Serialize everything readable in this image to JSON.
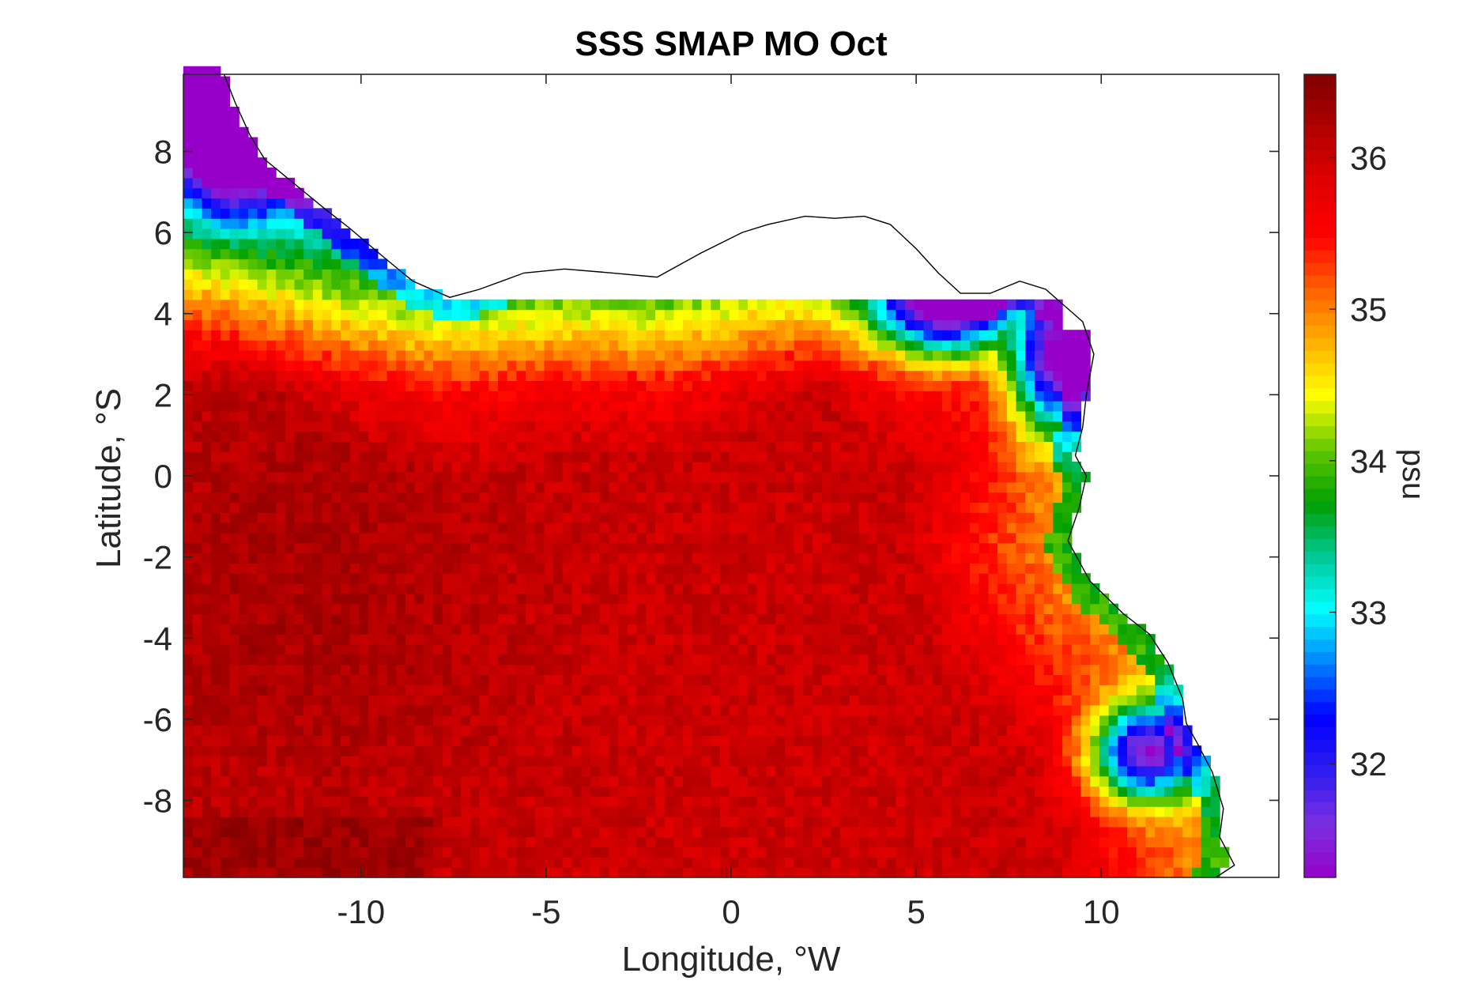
{
  "chart_data": {
    "type": "heatmap",
    "title": "SSS SMAP MO Oct",
    "xlabel": "Longitude, °W",
    "ylabel": "Latitude, °S",
    "colorbar_label": "psu",
    "xlim": [
      -14.8,
      14.8
    ],
    "ylim": [
      -9.9,
      9.9
    ],
    "x_ticks": [
      -10,
      -5,
      0,
      5,
      10
    ],
    "x_tick_labels": [
      "-10",
      "-5",
      "0",
      "5",
      "10"
    ],
    "y_ticks": [
      8,
      6,
      4,
      2,
      0,
      -2,
      -4,
      -6,
      -8
    ],
    "y_tick_labels": [
      "8",
      "6",
      "4",
      "2",
      "0",
      "-2",
      "-4",
      "-6",
      "-8"
    ],
    "colorbar_range": [
      31.25,
      36.55
    ],
    "colorbar_ticks": [
      36,
      35,
      34,
      33,
      32
    ],
    "colorbar_tick_labels": [
      "36",
      "35",
      "34",
      "33",
      "32"
    ],
    "colormap": [
      "#9600c8",
      "#7a2fe0",
      "#2e1cf0",
      "#0000ff",
      "#0080ff",
      "#00ffff",
      "#00c896",
      "#00a000",
      "#64c800",
      "#ffff00",
      "#ffb000",
      "#ff6000",
      "#ff0000",
      "#e00000",
      "#b00000",
      "#800000"
    ],
    "coast_color": "#000000",
    "grid": false,
    "note_regions": {
      "open_ocean_salinity_psu": 36.0,
      "far_southwest_salinity_psu": 36.3,
      "northern_shelf_salinity_psu": 34.5,
      "river_plume_salinity_psu": 32.0
    }
  }
}
